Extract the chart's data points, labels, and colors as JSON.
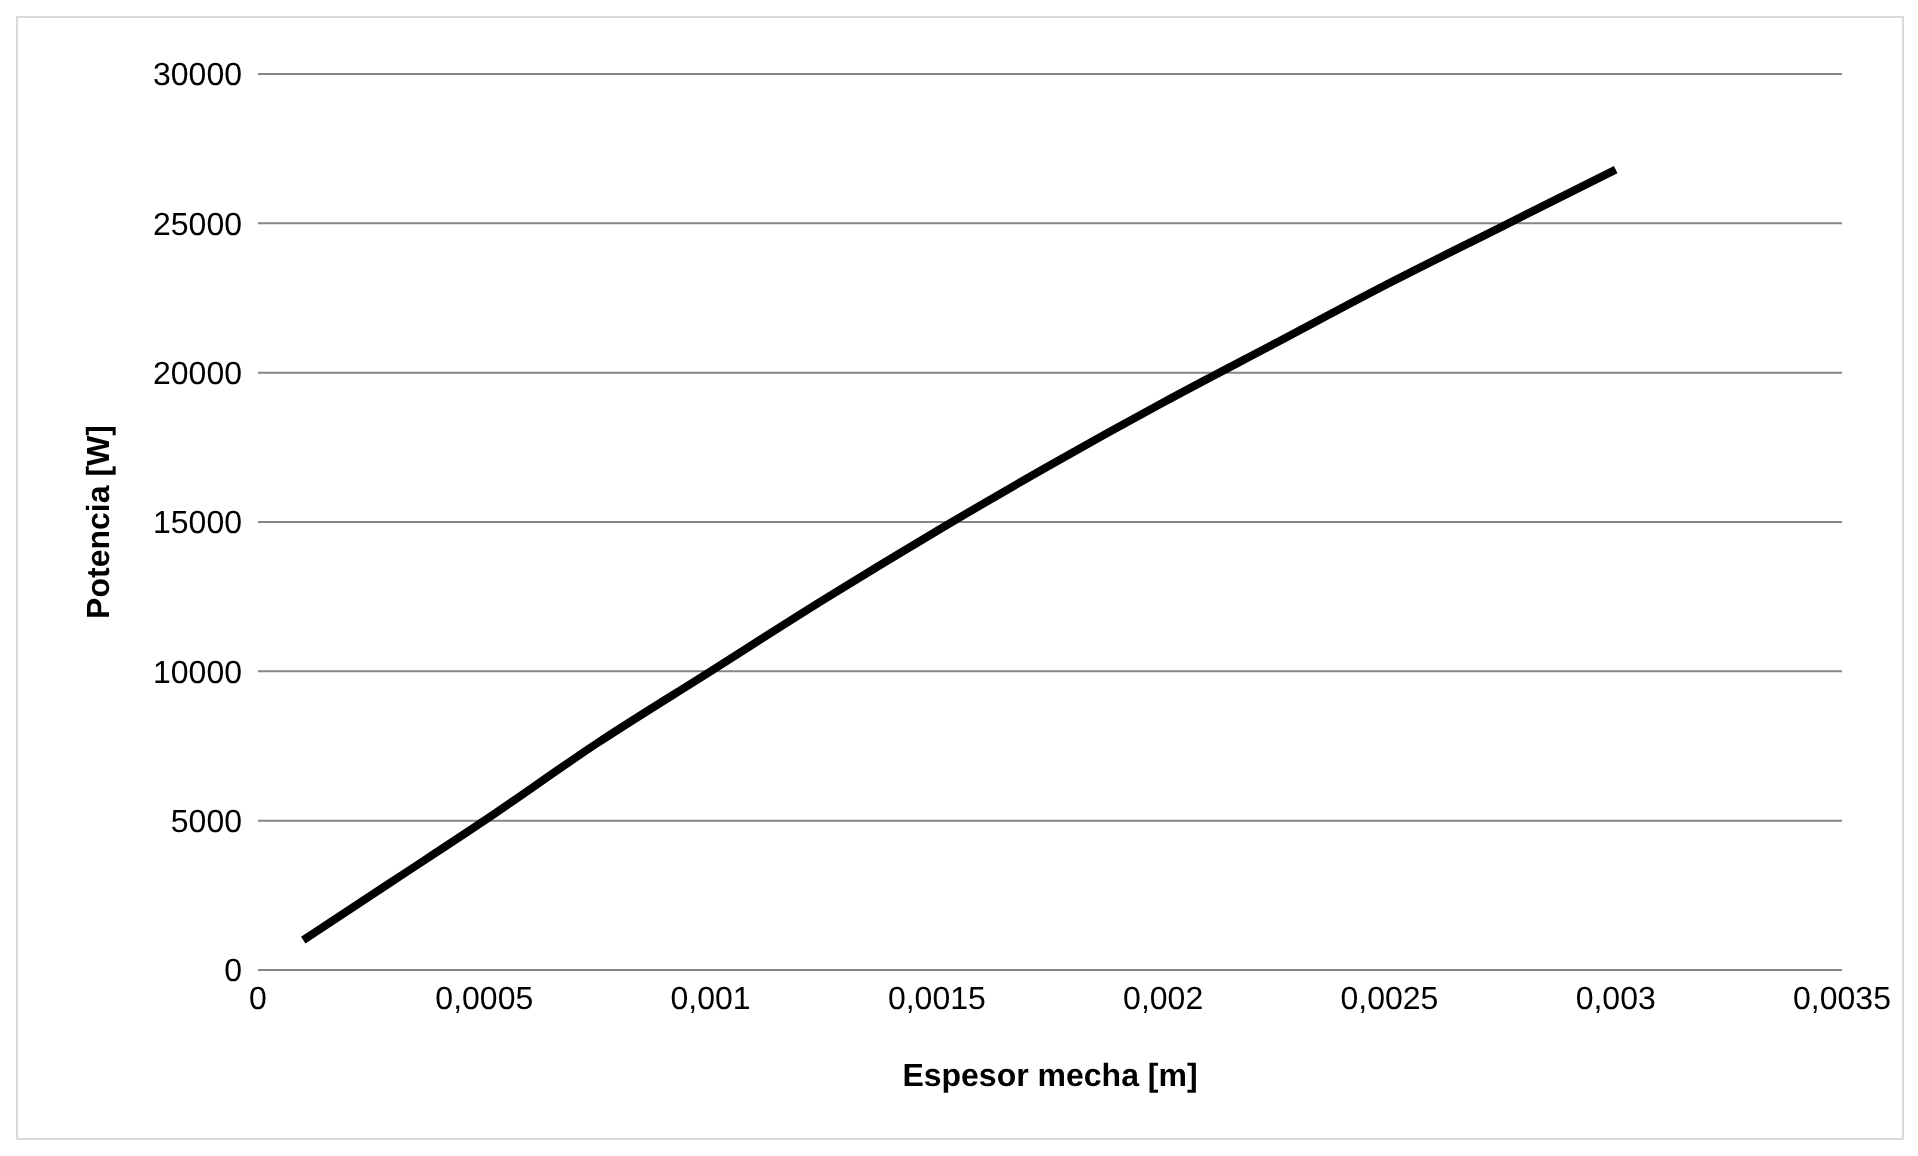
{
  "chart_data": {
    "type": "line",
    "xlabel": "Espesor mecha [m]",
    "ylabel": "Potencia [W]",
    "series": [
      {
        "color": "#000000",
        "x": [
          0.0001,
          0.0003,
          0.0005,
          0.00075,
          0.001,
          0.00125,
          0.0015,
          0.00175,
          0.002,
          0.00225,
          0.0025,
          0.00275,
          0.003
        ],
        "values": [
          1000,
          3000,
          5000,
          7600,
          10000,
          12400,
          14700,
          16900,
          19000,
          21000,
          23000,
          24900,
          26800
        ]
      }
    ],
    "xlim": [
      0,
      0.0035
    ],
    "xticks": [
      {
        "value": 0,
        "label": "0"
      },
      {
        "value": 0.0005,
        "label": "0,0005"
      },
      {
        "value": 0.001,
        "label": "0,001"
      },
      {
        "value": 0.0015,
        "label": "0,0015"
      },
      {
        "value": 0.002,
        "label": "0,002"
      },
      {
        "value": 0.0025,
        "label": "0,0025"
      },
      {
        "value": 0.003,
        "label": "0,003"
      },
      {
        "value": 0.0035,
        "label": "0,0035"
      }
    ],
    "ylim": [
      0,
      30000
    ],
    "yticks": [
      0,
      5000,
      10000,
      15000,
      20000,
      25000,
      30000
    ],
    "grid": "y",
    "marker": "none",
    "line_style": "solid"
  }
}
